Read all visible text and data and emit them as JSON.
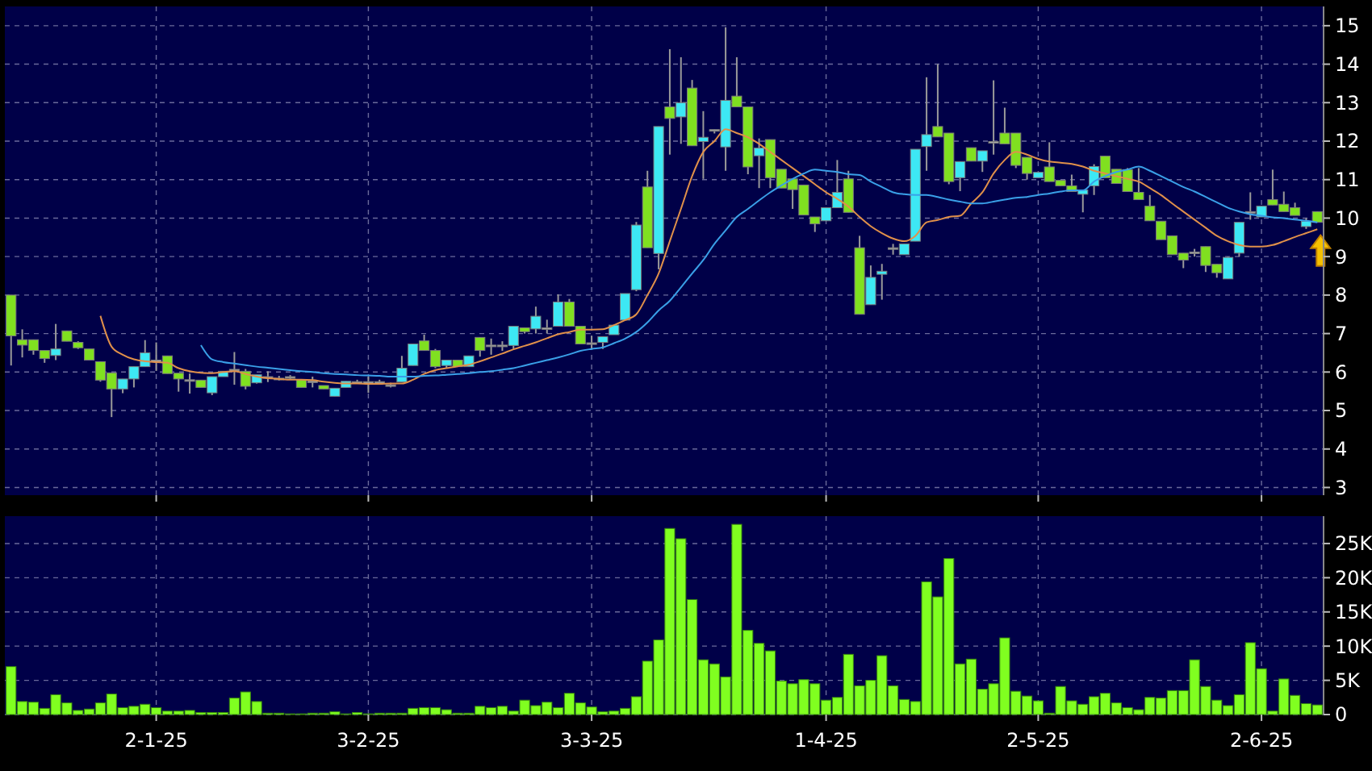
{
  "chart_data": [
    {
      "type": "candlestick",
      "categories": [
        null,
        null,
        null,
        null,
        null,
        null,
        null,
        null,
        null,
        null,
        null,
        null,
        null,
        null,
        null,
        null,
        null,
        null,
        null,
        null,
        null,
        null,
        null,
        null,
        null,
        null,
        null,
        null,
        null,
        null,
        null,
        null,
        null,
        null,
        null,
        null,
        null,
        null,
        null,
        null,
        null,
        null,
        null,
        null,
        null,
        null,
        null,
        null,
        null,
        null,
        null,
        null,
        null,
        null,
        null,
        null,
        null,
        null,
        null,
        null,
        null,
        null,
        null,
        null,
        null,
        null,
        null,
        null,
        null,
        null,
        null,
        null,
        null,
        null,
        null,
        null,
        null,
        null,
        null,
        null,
        null,
        null,
        null,
        null,
        null,
        null,
        null,
        null,
        null,
        null,
        null,
        null,
        null,
        null,
        null,
        null,
        null,
        null,
        null,
        null,
        null,
        null,
        null,
        null,
        null,
        null,
        null,
        null,
        null,
        null,
        null,
        null,
        null,
        null,
        null,
        null,
        null,
        null
      ],
      "ohlc": [
        [
          8.0,
          8.0,
          6.17,
          6.94
        ],
        [
          6.84,
          7.11,
          6.38,
          6.7
        ],
        [
          6.84,
          6.84,
          6.45,
          6.56
        ],
        [
          6.56,
          6.56,
          6.24,
          6.35
        ],
        [
          6.43,
          7.25,
          6.31,
          6.6
        ],
        [
          7.07,
          7.07,
          6.8,
          6.8
        ],
        [
          6.77,
          6.8,
          6.6,
          6.63
        ],
        [
          6.6,
          6.6,
          6.3,
          6.31
        ],
        [
          6.27,
          6.27,
          5.75,
          5.79
        ],
        [
          5.98,
          5.98,
          4.83,
          5.56
        ],
        [
          5.56,
          5.82,
          5.45,
          5.82
        ],
        [
          5.82,
          6.14,
          5.6,
          6.14
        ],
        [
          6.14,
          6.83,
          6.14,
          6.5
        ],
        [
          6.31,
          6.77,
          6.03,
          6.31
        ],
        [
          6.42,
          6.42,
          5.96,
          5.96
        ],
        [
          5.97,
          5.97,
          5.49,
          5.82
        ],
        [
          5.8,
          5.96,
          5.44,
          5.8
        ],
        [
          5.79,
          5.79,
          5.6,
          5.6
        ],
        [
          5.46,
          5.88,
          5.4,
          5.88
        ],
        [
          5.88,
          6.02,
          5.88,
          6.02
        ],
        [
          6.07,
          6.52,
          5.67,
          6.07
        ],
        [
          6.02,
          6.08,
          5.55,
          5.63
        ],
        [
          5.72,
          5.93,
          5.7,
          5.93
        ],
        [
          5.88,
          6.02,
          5.74,
          5.88
        ],
        [
          5.84,
          5.9,
          5.78,
          5.84
        ],
        [
          5.88,
          5.92,
          5.82,
          5.88
        ],
        [
          5.8,
          5.8,
          5.6,
          5.6
        ],
        [
          5.77,
          5.88,
          5.6,
          5.77
        ],
        [
          5.65,
          5.65,
          5.56,
          5.56
        ],
        [
          5.37,
          5.58,
          5.37,
          5.58
        ],
        [
          5.6,
          5.76,
          5.6,
          5.76
        ],
        [
          5.75,
          5.8,
          5.7,
          5.75
        ],
        [
          5.75,
          5.88,
          5.46,
          5.75
        ],
        [
          5.75,
          5.8,
          5.7,
          5.75
        ],
        [
          5.67,
          5.72,
          5.6,
          5.67
        ],
        [
          5.74,
          6.42,
          5.74,
          6.1
        ],
        [
          6.17,
          6.73,
          6.17,
          6.73
        ],
        [
          6.81,
          6.97,
          6.56,
          6.56
        ],
        [
          6.56,
          6.6,
          6.1,
          6.14
        ],
        [
          6.17,
          6.31,
          6.1,
          6.31
        ],
        [
          6.31,
          6.31,
          6.14,
          6.14
        ],
        [
          6.14,
          6.42,
          6.14,
          6.42
        ],
        [
          6.9,
          6.9,
          6.4,
          6.56
        ],
        [
          6.7,
          6.87,
          6.45,
          6.7
        ],
        [
          6.7,
          6.8,
          6.55,
          6.7
        ],
        [
          6.69,
          7.19,
          6.6,
          7.19
        ],
        [
          7.15,
          7.15,
          7.0,
          7.05
        ],
        [
          7.12,
          7.7,
          7.0,
          7.45
        ],
        [
          7.15,
          7.36,
          7.0,
          7.15
        ],
        [
          7.19,
          8.02,
          7.19,
          7.82
        ],
        [
          7.82,
          7.9,
          7.19,
          7.19
        ],
        [
          7.19,
          7.19,
          6.73,
          6.73
        ],
        [
          6.76,
          6.94,
          6.59,
          6.76
        ],
        [
          6.77,
          6.92,
          6.6,
          6.92
        ],
        [
          6.97,
          7.22,
          6.97,
          7.22
        ],
        [
          7.35,
          8.04,
          7.35,
          8.04
        ],
        [
          8.14,
          9.9,
          8.1,
          9.82
        ],
        [
          10.81,
          11.23,
          9.23,
          9.23
        ],
        [
          9.08,
          12.38,
          8.67,
          12.38
        ],
        [
          12.89,
          14.39,
          11.65,
          12.59
        ],
        [
          12.63,
          14.18,
          11.93,
          13.0
        ],
        [
          13.38,
          13.59,
          11.88,
          11.88
        ],
        [
          11.99,
          12.78,
          11.02,
          12.1
        ],
        [
          12.3,
          12.3,
          12.2,
          12.3
        ],
        [
          11.85,
          14.96,
          11.23,
          13.06
        ],
        [
          13.17,
          14.18,
          12.89,
          12.89
        ],
        [
          12.89,
          12.89,
          11.14,
          11.33
        ],
        [
          11.62,
          12.07,
          10.78,
          11.82
        ],
        [
          12.04,
          12.04,
          10.78,
          11.05
        ],
        [
          11.27,
          11.27,
          10.78,
          10.78
        ],
        [
          11.02,
          11.02,
          10.24,
          10.74
        ],
        [
          10.86,
          10.86,
          10.08,
          10.08
        ],
        [
          10.03,
          10.03,
          9.64,
          9.85
        ],
        [
          9.93,
          10.27,
          9.93,
          10.27
        ],
        [
          10.27,
          11.51,
          10.27,
          10.67
        ],
        [
          11.02,
          11.23,
          10.15,
          10.15
        ],
        [
          9.23,
          9.54,
          7.5,
          7.5
        ],
        [
          7.75,
          8.77,
          7.75,
          8.46
        ],
        [
          8.54,
          8.81,
          7.88,
          8.62
        ],
        [
          9.23,
          9.33,
          9.05,
          9.23
        ],
        [
          9.05,
          9.33,
          9.05,
          9.33
        ],
        [
          9.4,
          11.79,
          9.4,
          11.79
        ],
        [
          11.86,
          13.66,
          11.23,
          12.17
        ],
        [
          12.38,
          14.0,
          12.11,
          12.11
        ],
        [
          12.21,
          12.21,
          10.88,
          10.95
        ],
        [
          11.05,
          11.47,
          10.7,
          11.47
        ],
        [
          11.83,
          11.83,
          11.48,
          11.48
        ],
        [
          11.48,
          11.75,
          11.2,
          11.75
        ],
        [
          11.99,
          13.58,
          11.65,
          11.99
        ],
        [
          12.21,
          12.87,
          11.93,
          11.93
        ],
        [
          12.21,
          12.21,
          11.3,
          11.37
        ],
        [
          11.58,
          11.58,
          11.0,
          11.16
        ],
        [
          11.05,
          11.19,
          11.05,
          11.19
        ],
        [
          11.33,
          11.97,
          10.95,
          10.95
        ],
        [
          10.98,
          10.98,
          10.84,
          10.84
        ],
        [
          10.84,
          11.13,
          10.69,
          10.69
        ],
        [
          10.62,
          10.73,
          10.15,
          10.73
        ],
        [
          10.84,
          11.4,
          10.6,
          11.34
        ],
        [
          11.61,
          11.61,
          11.05,
          11.05
        ],
        [
          11.27,
          11.27,
          10.9,
          10.9
        ],
        [
          11.26,
          11.3,
          10.69,
          10.69
        ],
        [
          10.67,
          11.3,
          10.48,
          10.48
        ],
        [
          10.31,
          10.6,
          9.93,
          9.93
        ],
        [
          9.92,
          9.92,
          9.44,
          9.44
        ],
        [
          9.54,
          9.54,
          9.05,
          9.05
        ],
        [
          9.09,
          9.09,
          8.7,
          8.91
        ],
        [
          9.12,
          9.2,
          9.0,
          9.12
        ],
        [
          9.26,
          9.26,
          8.6,
          8.77
        ],
        [
          8.8,
          8.8,
          8.45,
          8.58
        ],
        [
          8.42,
          9.0,
          8.42,
          8.98
        ],
        [
          9.09,
          9.89,
          9.0,
          9.89
        ],
        [
          10.17,
          10.67,
          9.96,
          10.17
        ],
        [
          10.03,
          10.31,
          10.03,
          10.31
        ],
        [
          10.48,
          11.26,
          10.34,
          10.34
        ],
        [
          10.36,
          10.69,
          10.17,
          10.17
        ],
        [
          10.27,
          10.4,
          10.07,
          10.07
        ],
        [
          9.78,
          10.0,
          9.72,
          9.92
        ],
        [
          10.17,
          10.17,
          9.89,
          9.89
        ]
      ],
      "colors": [
        "#80e020",
        "#80e020",
        "#80e020",
        "#80e020",
        "#3de8f4",
        "#80e020",
        "#80e020",
        "#80e020",
        "#80e020",
        "#80e020",
        "#3de8f4",
        "#3de8f4",
        "#3de8f4",
        "#a8a8a8",
        "#80e020",
        "#80e020",
        "#a8a8a8",
        "#80e020",
        "#3de8f4",
        "#3de8f4",
        "#a8a8a8",
        "#80e020",
        "#3de8f4",
        "#a8a8a8",
        "#a8a8a8",
        "#a8a8a8",
        "#80e020",
        "#a8a8a8",
        "#80e020",
        "#3de8f4",
        "#3de8f4",
        "#a8a8a8",
        "#a8a8a8",
        "#a8a8a8",
        "#a8a8a8",
        "#3de8f4",
        "#3de8f4",
        "#80e020",
        "#80e020",
        "#3de8f4",
        "#80e020",
        "#3de8f4",
        "#80e020",
        "#a8a8a8",
        "#a8a8a8",
        "#3de8f4",
        "#80e020",
        "#3de8f4",
        "#a8a8a8",
        "#3de8f4",
        "#80e020",
        "#80e020",
        "#a8a8a8",
        "#3de8f4",
        "#3de8f4",
        "#3de8f4",
        "#3de8f4",
        "#80e020",
        "#3de8f4",
        "#80e020",
        "#3de8f4",
        "#80e020",
        "#3de8f4",
        "#a8a8a8",
        "#3de8f4",
        "#80e020",
        "#80e020",
        "#3de8f4",
        "#80e020",
        "#80e020",
        "#80e020",
        "#80e020",
        "#80e020",
        "#3de8f4",
        "#3de8f4",
        "#80e020",
        "#80e020",
        "#3de8f4",
        "#3de8f4",
        "#a8a8a8",
        "#3de8f4",
        "#3de8f4",
        "#3de8f4",
        "#80e020",
        "#80e020",
        "#3de8f4",
        "#80e020",
        "#3de8f4",
        "#a8a8a8",
        "#80e020",
        "#80e020",
        "#80e020",
        "#3de8f4",
        "#80e020",
        "#80e020",
        "#80e020",
        "#3de8f4",
        "#3de8f4",
        "#80e020",
        "#80e020",
        "#80e020",
        "#80e020",
        "#80e020",
        "#80e020",
        "#80e020",
        "#80e020",
        "#a8a8a8",
        "#80e020",
        "#80e020",
        "#3de8f4",
        "#3de8f4",
        "#a8a8a8",
        "#3de8f4",
        "#80e020",
        "#80e020",
        "#80e020",
        "#3de8f4",
        "#80e020"
      ],
      "series": [
        {
          "type": "line",
          "color": "#e0904a",
          "values": [
            null,
            null,
            null,
            null,
            null,
            null,
            null,
            null,
            7.46,
            6.66,
            6.45,
            6.33,
            6.28,
            6.26,
            6.24,
            6.1,
            6.02,
            5.98,
            5.97,
            6.0,
            6.02,
            5.95,
            5.88,
            5.84,
            5.82,
            5.8,
            5.8,
            5.79,
            5.75,
            5.72,
            5.7,
            5.7,
            5.69,
            5.69,
            5.7,
            5.7,
            5.8,
            5.95,
            6.05,
            6.1,
            6.15,
            6.19,
            6.28,
            6.38,
            6.48,
            6.59,
            6.68,
            6.77,
            6.88,
            6.98,
            7.04,
            7.1,
            7.1,
            7.11,
            7.22,
            7.35,
            7.5,
            8.0,
            8.56,
            9.4,
            10.24,
            11.09,
            11.72,
            12.0,
            12.31,
            12.21,
            12.1,
            11.93,
            11.72,
            11.51,
            11.3,
            11.09,
            10.88,
            10.67,
            10.5,
            10.3,
            10.03,
            9.79,
            9.61,
            9.47,
            9.4,
            9.54,
            9.89,
            9.95,
            10.03,
            10.06,
            10.38,
            10.67,
            11.16,
            11.51,
            11.72,
            11.65,
            11.54,
            11.47,
            11.44,
            11.41,
            11.34,
            11.23,
            11.16,
            11.09,
            11.02,
            10.95,
            10.78,
            10.6,
            10.38,
            10.17,
            9.96,
            9.75,
            9.54,
            9.4,
            9.3,
            9.26,
            9.26,
            9.3,
            9.4,
            9.51,
            9.61,
            9.71
          ]
        },
        {
          "type": "line",
          "color": "#3aa0e8",
          "values": [
            null,
            null,
            null,
            null,
            null,
            null,
            null,
            null,
            null,
            null,
            null,
            null,
            null,
            null,
            null,
            null,
            null,
            6.7,
            6.33,
            6.26,
            6.22,
            6.18,
            6.14,
            6.11,
            6.08,
            6.05,
            6.02,
            6.0,
            5.97,
            5.95,
            5.94,
            5.92,
            5.91,
            5.9,
            5.88,
            5.88,
            5.88,
            5.9,
            5.91,
            5.93,
            5.95,
            5.97,
            6.0,
            6.02,
            6.06,
            6.1,
            6.17,
            6.24,
            6.31,
            6.38,
            6.46,
            6.55,
            6.6,
            6.64,
            6.75,
            6.87,
            7.04,
            7.29,
            7.6,
            7.85,
            8.2,
            8.56,
            8.91,
            9.33,
            9.68,
            10.03,
            10.24,
            10.46,
            10.67,
            10.85,
            11.02,
            11.16,
            11.26,
            11.23,
            11.2,
            11.14,
            11.12,
            10.95,
            10.81,
            10.67,
            10.62,
            10.6,
            10.6,
            10.55,
            10.48,
            10.43,
            10.38,
            10.38,
            10.43,
            10.48,
            10.53,
            10.55,
            10.6,
            10.64,
            10.69,
            10.72,
            10.72,
            10.95,
            11.09,
            11.2,
            11.26,
            11.34,
            11.23,
            11.09,
            10.95,
            10.81,
            10.69,
            10.55,
            10.41,
            10.27,
            10.17,
            10.1,
            10.06,
            10.02,
            10.0,
            9.96,
            9.93,
            9.89
          ]
        }
      ],
      "ylim": [
        2.8,
        15.5
      ],
      "yticks": [
        3,
        4,
        5,
        6,
        7,
        8,
        9,
        10,
        11,
        12,
        13,
        14,
        15
      ],
      "grid": true,
      "tick_labels": "y"
    },
    {
      "type": "bar",
      "categories": [
        null,
        null,
        null,
        null,
        null,
        null,
        null,
        null,
        null,
        null,
        null,
        null,
        null,
        "2-1-25",
        null,
        null,
        null,
        null,
        null,
        null,
        null,
        null,
        null,
        null,
        null,
        null,
        null,
        null,
        null,
        null,
        null,
        null,
        "3-2-25",
        null,
        null,
        null,
        null,
        null,
        null,
        null,
        null,
        null,
        null,
        null,
        null,
        null,
        null,
        null,
        null,
        null,
        null,
        null,
        "3-3-25",
        null,
        null,
        null,
        null,
        null,
        null,
        null,
        null,
        null,
        null,
        null,
        null,
        null,
        null,
        null,
        null,
        null,
        null,
        null,
        null,
        "1-4-25",
        null,
        null,
        null,
        null,
        null,
        null,
        null,
        null,
        null,
        null,
        null,
        null,
        null,
        null,
        null,
        null,
        null,
        null,
        "2-5-25",
        null,
        null,
        null,
        null,
        null,
        null,
        null,
        null,
        null,
        null,
        null,
        null,
        null,
        null,
        null,
        null,
        null,
        null,
        null,
        "2-6-25",
        null,
        null,
        null,
        null,
        null
      ],
      "values": [
        7000,
        1900,
        1800,
        900,
        2900,
        1700,
        600,
        800,
        1700,
        3000,
        1000,
        1200,
        1500,
        1000,
        500,
        500,
        600,
        300,
        300,
        300,
        2400,
        3300,
        1900,
        200,
        200,
        100,
        100,
        200,
        200,
        400,
        100,
        300,
        100,
        200,
        200,
        200,
        900,
        1000,
        1000,
        700,
        200,
        200,
        1200,
        1000,
        1200,
        500,
        2100,
        1300,
        1800,
        1000,
        3100,
        1700,
        1100,
        400,
        500,
        900,
        2600,
        7800,
        10900,
        27200,
        25700,
        16800,
        8000,
        7400,
        5500,
        27800,
        12300,
        10400,
        9300,
        4900,
        4500,
        5100,
        4500,
        2100,
        2500,
        8800,
        4200,
        5000,
        8600,
        4200,
        2200,
        1900,
        19400,
        17200,
        22800,
        7400,
        8100,
        3700,
        4500,
        11200,
        3400,
        2700,
        2000,
        200,
        4100,
        2000,
        1500,
        2600,
        3100,
        1700,
        1000,
        700,
        2500,
        2400,
        3500,
        3500,
        8000,
        4100,
        2100,
        1300,
        2900,
        10500,
        6700,
        500,
        5200,
        2800,
        1600,
        1400
      ],
      "color": "#80ff20",
      "ylim": [
        0,
        29000
      ],
      "yticks": [
        0,
        {
          "value": 5000,
          "label": "5K"
        },
        {
          "value": 10000,
          "label": "10K"
        },
        {
          "value": 15000,
          "label": "15K"
        },
        {
          "value": 20000,
          "label": "20K"
        },
        {
          "value": 25000,
          "label": "25K"
        }
      ],
      "grid": true
    }
  ]
}
